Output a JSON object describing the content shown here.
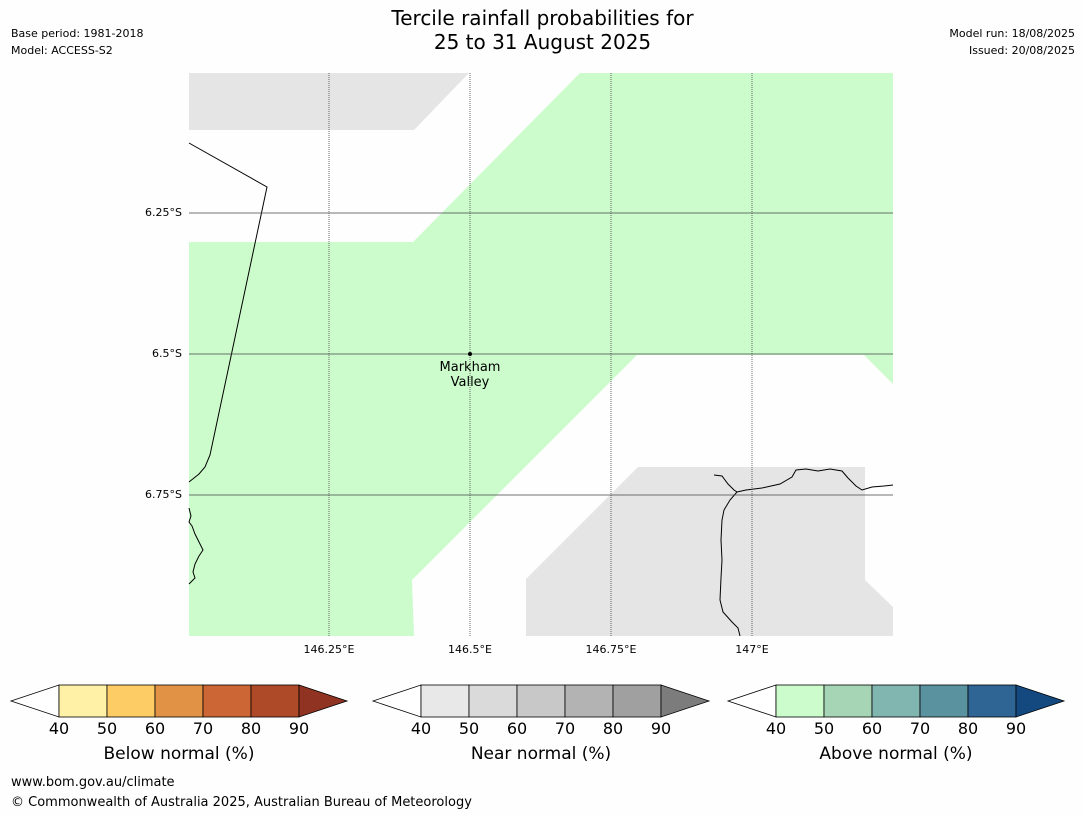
{
  "header": {
    "base_period": "Base period: 1981-2018",
    "model": "Model: ACCESS-S2",
    "model_run": "Model run: 18/08/2025",
    "issued": "Issued: 20/08/2025",
    "title_line1": "Tercile rainfall probabilities for",
    "title_line2": "25 to 31 August 2025"
  },
  "map": {
    "lat_labels": [
      "6.25°S",
      "6.5°S",
      "6.75°S"
    ],
    "lon_labels": [
      "146.25°E",
      "146.5°E",
      "146.75°E",
      "147°E"
    ],
    "place": {
      "line1": "Markham",
      "line2": "Valley"
    },
    "colors": {
      "above_40_50": "#ccfccc",
      "near_40_50": "#e5e5e5",
      "gridline": "#444444",
      "coastline": "#000000"
    }
  },
  "legends": {
    "below": {
      "title": "Below normal (%)",
      "ticks": [
        "40",
        "50",
        "60",
        "70",
        "80",
        "90"
      ],
      "colors": [
        "#fff1a5",
        "#fecc65",
        "#e19244",
        "#cd6635",
        "#ae4a28",
        "#913322"
      ]
    },
    "near": {
      "title": "Near normal (%)",
      "ticks": [
        "40",
        "50",
        "60",
        "70",
        "80",
        "90"
      ],
      "colors": [
        "#e8e8e8",
        "#dadada",
        "#c8c8c8",
        "#b3b3b3",
        "#a0a0a0",
        "#7c7c7c"
      ]
    },
    "above": {
      "title": "Above normal (%)",
      "ticks": [
        "40",
        "50",
        "60",
        "70",
        "80",
        "90"
      ],
      "colors": [
        "#ccfccc",
        "#a6d5b5",
        "#80b5b0",
        "#5a92a0",
        "#2f6595",
        "#13497f"
      ]
    }
  },
  "footer": {
    "url": "www.bom.gov.au/climate",
    "copyright": "© Commonwealth of Australia 2025, Australian Bureau of Meteorology"
  }
}
